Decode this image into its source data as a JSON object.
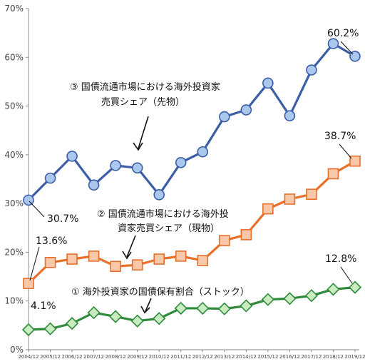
{
  "chart_data": {
    "type": "line",
    "categories": [
      "2004/12",
      "2005/12",
      "2006/12",
      "2007/12",
      "2008/12",
      "2009/12",
      "2010/12",
      "2011/12",
      "2012/12",
      "2013/12",
      "2014/12",
      "2015/12",
      "2016/12",
      "2017/12",
      "2018/12",
      "2019/12"
    ],
    "ylim": [
      0,
      70
    ],
    "yticks": [
      0,
      10,
      20,
      30,
      40,
      50,
      60,
      70
    ],
    "ytick_labels": [
      "0%",
      "10%",
      "20%",
      "30%",
      "40%",
      "50%",
      "60%",
      "70%"
    ],
    "grid": false,
    "series": [
      {
        "name": "③ 国債流通市場における海外投資家売買シェア（先物）",
        "color": "#3b5ea9",
        "fill": "#a9c8ec",
        "marker": "circle",
        "values": [
          30.7,
          35.2,
          39.7,
          33.8,
          37.8,
          37.3,
          31.8,
          38.4,
          40.6,
          47.8,
          49.2,
          54.7,
          48.0,
          57.4,
          62.8,
          60.2
        ]
      },
      {
        "name": "② 国債流通市場における海外投資家売買シェア（現物）",
        "color": "#e8702a",
        "fill": "#f8c8a8",
        "marker": "square",
        "values": [
          13.6,
          17.9,
          18.6,
          19.2,
          17.1,
          17.4,
          18.6,
          19.2,
          18.3,
          22.4,
          23.6,
          28.9,
          30.9,
          31.9,
          36.1,
          38.7
        ]
      },
      {
        "name": "① 海外投資家の国債保有割合（ストック）",
        "color": "#2f8a3c",
        "fill": "#c8ebbf",
        "marker": "diamond",
        "values": [
          4.1,
          4.3,
          5.4,
          7.6,
          6.8,
          5.9,
          6.4,
          8.5,
          8.5,
          8.4,
          9.0,
          10.3,
          10.5,
          11.1,
          12.4,
          12.8
        ]
      }
    ]
  },
  "annotations": {
    "futures_line1": "③ 国債流通市場における海外投資家",
    "futures_line2": "売買シェア（先物）",
    "spot_line1": "② 国債流通市場における海外投",
    "spot_line2": "資家売買シェア（現物）",
    "stock_line": "① 海外投資家の国債保有割合（ストック）"
  },
  "value_labels": {
    "futures_start": "30.7%",
    "futures_end": "60.2%",
    "spot_start": "13.6%",
    "spot_end": "38.7%",
    "stock_start": "4.1%",
    "stock_end": "12.8%"
  }
}
